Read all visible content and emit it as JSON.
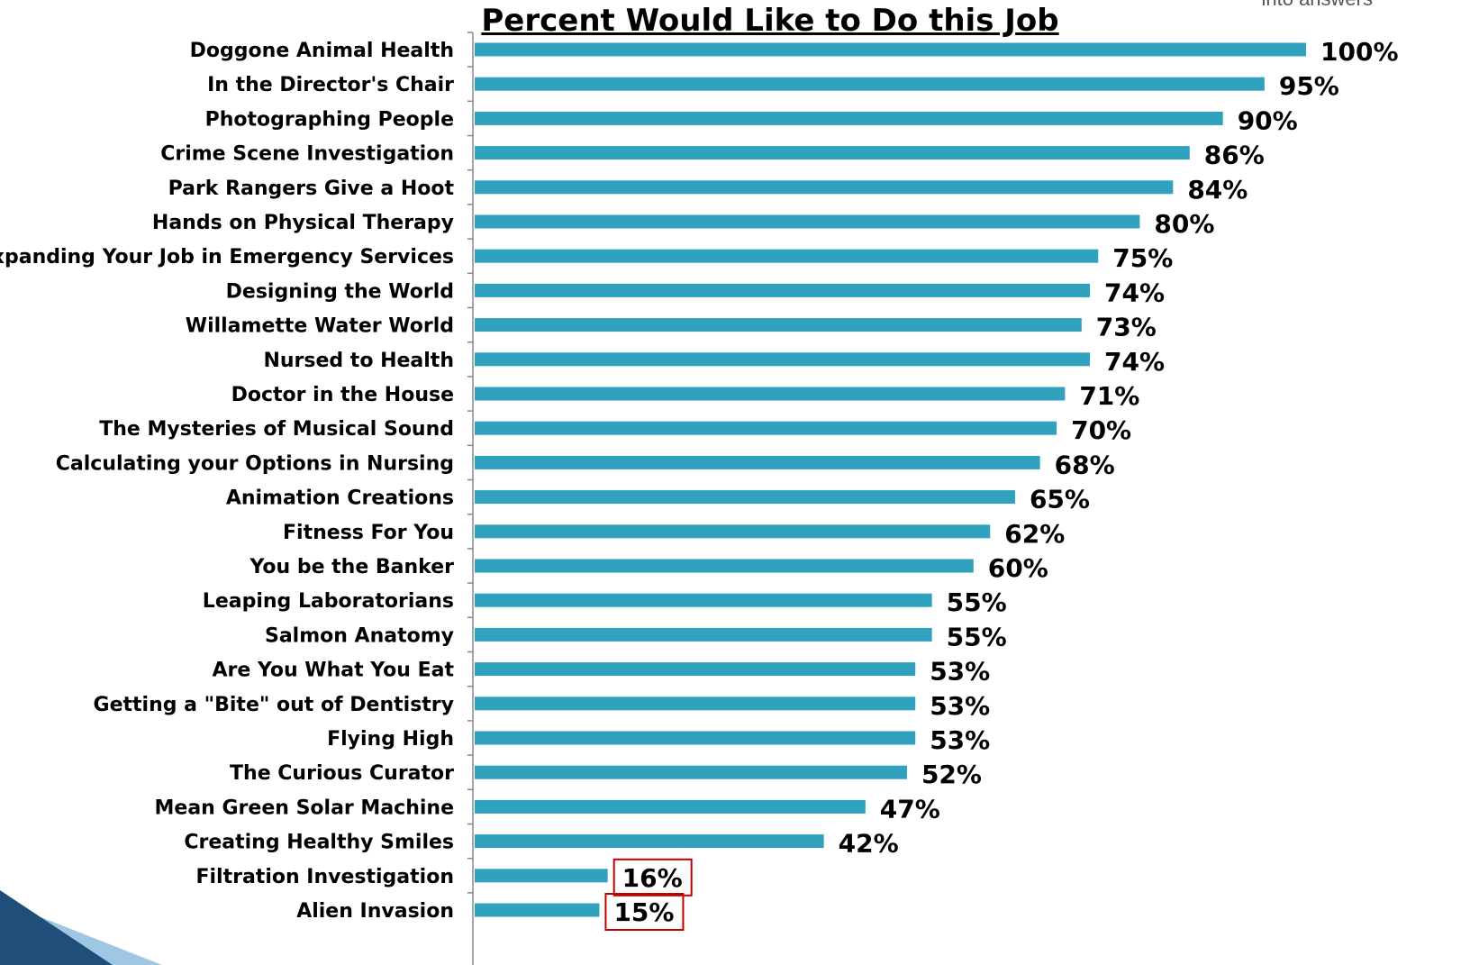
{
  "brand_fragment": "into answers",
  "chart_data": {
    "type": "bar",
    "orientation": "horizontal",
    "title": "Percent Would Like to Do this Job",
    "xlim": [
      0,
      100
    ],
    "bar_color": "#31A2BE",
    "highlight_color": "#C00000",
    "highlighted": [
      "Filtration Investigation",
      "Alien Invasion"
    ],
    "categories": [
      "Doggone Animal Health",
      "In the Director's Chair",
      "Photographing People",
      "Crime Scene Investigation",
      "Park Rangers Give a Hoot",
      "Hands on Physical Therapy",
      "Expanding Your Job in Emergency Services",
      "Designing the World",
      "Willamette Water World",
      "Nursed to Health",
      "Doctor in the House",
      "The Mysteries of Musical Sound",
      "Calculating your Options in Nursing",
      "Animation Creations",
      "Fitness For You",
      "You be the Banker",
      "Leaping Laboratorians",
      "Salmon Anatomy",
      "Are You What You Eat",
      "Getting a \"Bite\" out of Dentistry",
      "Flying High",
      "The Curious Curator",
      "Mean Green Solar Machine",
      "Creating Healthy Smiles",
      "Filtration Investigation",
      "Alien Invasion"
    ],
    "values": [
      100,
      95,
      90,
      86,
      84,
      80,
      75,
      74,
      73,
      74,
      71,
      70,
      68,
      65,
      62,
      60,
      55,
      55,
      53,
      53,
      53,
      52,
      47,
      42,
      16,
      15
    ],
    "value_labels": [
      "100%",
      "95%",
      "90%",
      "86%",
      "84%",
      "80%",
      "75%",
      "74%",
      "73%",
      "74%",
      "71%",
      "70%",
      "68%",
      "65%",
      "62%",
      "60%",
      "55%",
      "55%",
      "53%",
      "53%",
      "53%",
      "52%",
      "47%",
      "42%",
      "16%",
      "15%"
    ]
  }
}
